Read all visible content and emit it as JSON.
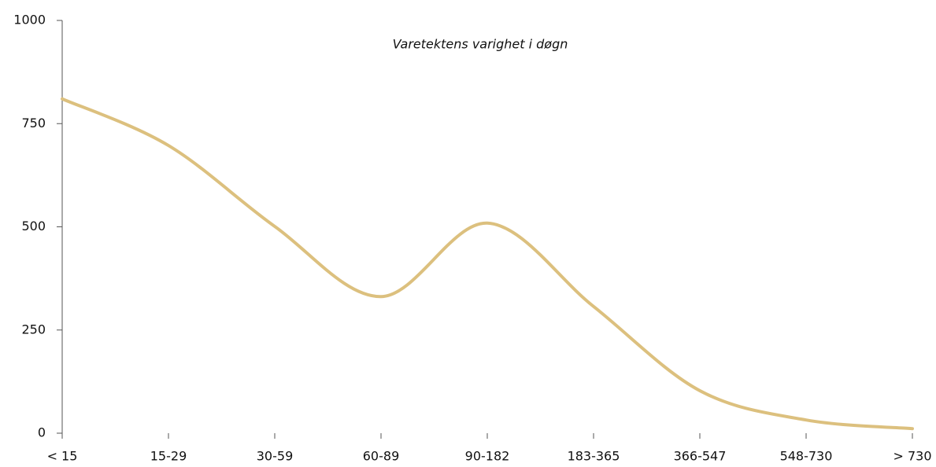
{
  "chart_data": {
    "type": "line",
    "title": "Varetektens varighet i døgn",
    "categories": [
      "< 15",
      "15-29",
      "30-59",
      "60-89",
      "90-182",
      "183-365",
      "366-547",
      "548-730",
      "> 730"
    ],
    "values": [
      810,
      697,
      501,
      331,
      509,
      307,
      103,
      32,
      11
    ],
    "color": "#dcc07e",
    "smooth": true,
    "ylim": [
      0,
      1000
    ],
    "yticks": [
      0,
      250,
      500,
      750,
      1000
    ],
    "grid": false
  }
}
